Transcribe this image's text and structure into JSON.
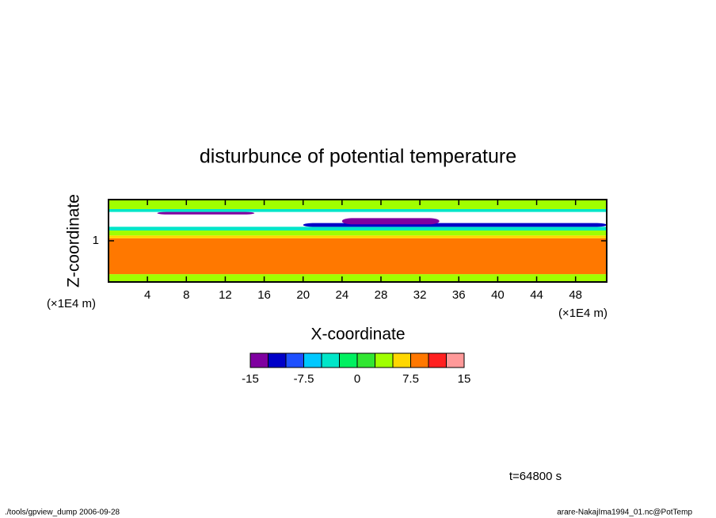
{
  "chart_data": {
    "type": "contour",
    "title": "disturbunce of potential temperature",
    "xlabel": "X-coordinate",
    "ylabel": "Z-coordinate",
    "xunit": "(×1E4 m)",
    "yunit": "(×1E4 m)",
    "xlim": [
      0,
      51.2
    ],
    "ylim": [
      0,
      2
    ],
    "xticks": [
      4,
      8,
      12,
      16,
      20,
      24,
      28,
      32,
      36,
      40,
      44,
      48
    ],
    "yticks": [
      1
    ],
    "bands": [
      {
        "x": [
          0,
          51.2
        ],
        "z": [
          0,
          0.19
        ],
        "level": 2.5
      },
      {
        "x": [
          0,
          51.2
        ],
        "z": [
          0.19,
          1.06
        ],
        "level": 7.5
      },
      {
        "x": [
          0,
          51.2
        ],
        "z": [
          1.06,
          1.13
        ],
        "level": 5
      },
      {
        "x": [
          0,
          51.2
        ],
        "z": [
          1.13,
          1.25
        ],
        "level": 2.5
      },
      {
        "x": [
          0,
          51.2
        ],
        "z": [
          1.25,
          1.34
        ],
        "level": -5
      },
      {
        "x": [
          20,
          51.2
        ],
        "z": [
          1.34,
          1.43
        ],
        "level": -12.5
      },
      {
        "x": [
          24,
          34
        ],
        "z": [
          1.4,
          1.55
        ],
        "level": -15
      },
      {
        "x": [
          0,
          51.2
        ],
        "z": [
          1.7,
          1.77
        ],
        "level": -5
      },
      {
        "x": [
          0,
          51.2
        ],
        "z": [
          1.77,
          2
        ],
        "level": 2.5
      },
      {
        "x": [
          5,
          15
        ],
        "z": [
          1.64,
          1.7
        ],
        "level": -15
      }
    ],
    "colorbar": {
      "levels": [
        -15,
        -12.5,
        -10,
        -7.5,
        -5,
        -2.5,
        0,
        2.5,
        5,
        7.5,
        10,
        12.5,
        15
      ],
      "colors": [
        "#7f00a0",
        "#0000c8",
        "#1e50ff",
        "#00c8ff",
        "#00e6c8",
        "#00f060",
        "#32e632",
        "#a0ff00",
        "#ffd700",
        "#ff7800",
        "#ff2020",
        "#ff9999"
      ],
      "ticks": [
        -15,
        -7.5,
        0,
        7.5,
        15
      ]
    },
    "annotation": "t=64800 s",
    "footer_left": "./tools/gpview_dump  2006-09-28",
    "footer_right": "arare-NakajIma1994_01.nc@PotTemp"
  }
}
